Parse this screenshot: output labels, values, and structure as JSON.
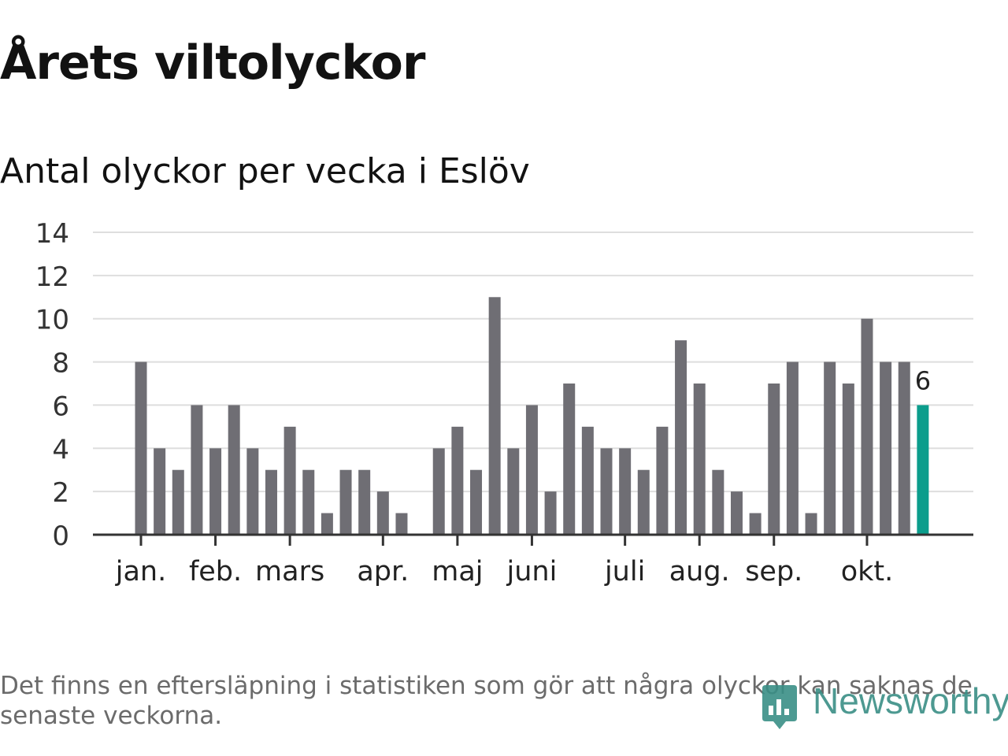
{
  "header": {
    "title": "Årets viltolyckor",
    "subtitle": "Antal olyckor per vecka i Eslöv"
  },
  "footnote": "Det finns en eftersläpning i statistiken som gör att några olyckor kan saknas de senaste veckorna.",
  "brand": {
    "name": "Newsworthy",
    "icon": "newsworthy-logo-icon",
    "color": "#3a8f86"
  },
  "colors": {
    "bar": "#6f6e74",
    "highlight": "#0b9d8c",
    "grid": "#dedede",
    "axis": "#333333"
  },
  "chart_data": {
    "type": "bar",
    "title": "Antal olyckor per vecka i Eslöv",
    "xlabel": "",
    "ylabel": "",
    "ylim": [
      0,
      14
    ],
    "yticks": [
      "0",
      "2",
      "4",
      "6",
      "8",
      "10",
      "12",
      "14"
    ],
    "grid": true,
    "legend": "none",
    "values": [
      8,
      4,
      3,
      6,
      4,
      6,
      4,
      3,
      5,
      3,
      1,
      3,
      3,
      2,
      1,
      0,
      4,
      5,
      3,
      11,
      4,
      6,
      2,
      7,
      5,
      4,
      4,
      3,
      5,
      9,
      7,
      3,
      2,
      1,
      7,
      8,
      1,
      8,
      7,
      10,
      8,
      8,
      6
    ],
    "highlight_index": 42,
    "highlight_label": "6",
    "months": [
      {
        "label": "jan.",
        "week_index": 0
      },
      {
        "label": "feb.",
        "week_index": 4
      },
      {
        "label": "mars",
        "week_index": 8
      },
      {
        "label": "apr.",
        "week_index": 13
      },
      {
        "label": "maj",
        "week_index": 17
      },
      {
        "label": "juni",
        "week_index": 21
      },
      {
        "label": "juli",
        "week_index": 26
      },
      {
        "label": "aug.",
        "week_index": 30
      },
      {
        "label": "sep.",
        "week_index": 34
      },
      {
        "label": "okt.",
        "week_index": 39
      }
    ]
  }
}
